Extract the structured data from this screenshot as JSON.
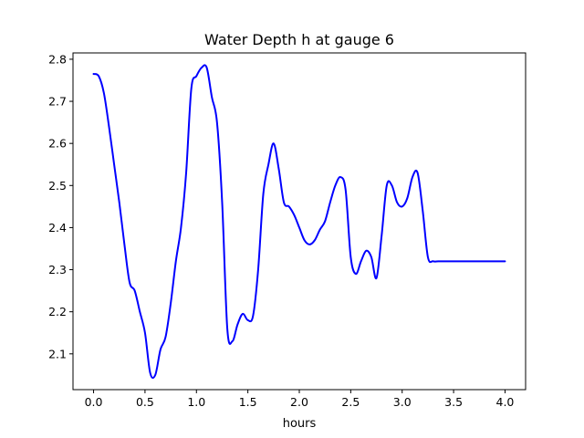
{
  "chart_data": {
    "type": "line",
    "title": "Water Depth h at gauge 6",
    "xlabel": "hours",
    "ylabel": "",
    "xlim": [
      -0.2,
      4.2
    ],
    "ylim": [
      2.015,
      2.815
    ],
    "xticks": [
      0.0,
      0.5,
      1.0,
      1.5,
      2.0,
      2.5,
      3.0,
      3.5,
      4.0
    ],
    "xtick_labels": [
      "0.0",
      "0.5",
      "1.0",
      "1.5",
      "2.0",
      "2.5",
      "3.0",
      "3.5",
      "4.0"
    ],
    "yticks": [
      2.1,
      2.2,
      2.3,
      2.4,
      2.5,
      2.6,
      2.7,
      2.8
    ],
    "ytick_labels": [
      "2.1",
      "2.2",
      "2.3",
      "2.4",
      "2.5",
      "2.6",
      "2.7",
      "2.8"
    ],
    "grid": false,
    "color": "#0000ff",
    "series": [
      {
        "x": [
          0.0,
          0.05,
          0.1,
          0.15,
          0.2,
          0.25,
          0.3,
          0.35,
          0.4,
          0.45,
          0.5,
          0.55,
          0.6,
          0.65,
          0.7,
          0.75,
          0.8,
          0.85,
          0.9,
          0.95,
          1.0,
          1.05,
          1.1,
          1.15,
          1.2,
          1.25,
          1.3,
          1.35,
          1.4,
          1.45,
          1.5,
          1.55,
          1.6,
          1.65,
          1.7,
          1.75,
          1.8,
          1.85,
          1.9,
          1.95,
          2.0,
          2.05,
          2.1,
          2.15,
          2.2,
          2.25,
          2.3,
          2.35,
          2.4,
          2.45,
          2.5,
          2.55,
          2.6,
          2.65,
          2.7,
          2.75,
          2.8,
          2.85,
          2.9,
          2.95,
          3.0,
          3.05,
          3.1,
          3.15,
          3.2,
          3.25,
          3.3,
          3.35,
          3.4,
          3.45,
          3.5,
          3.55,
          3.6,
          3.65,
          3.7,
          3.75,
          3.8,
          3.85,
          3.9,
          3.95,
          4.0
        ],
        "y": [
          2.765,
          2.76,
          2.72,
          2.64,
          2.55,
          2.46,
          2.36,
          2.27,
          2.25,
          2.2,
          2.15,
          2.055,
          2.05,
          2.11,
          2.14,
          2.22,
          2.32,
          2.4,
          2.53,
          2.73,
          2.76,
          2.78,
          2.78,
          2.71,
          2.65,
          2.46,
          2.16,
          2.13,
          2.17,
          2.195,
          2.18,
          2.19,
          2.3,
          2.48,
          2.55,
          2.6,
          2.54,
          2.46,
          2.45,
          2.43,
          2.4,
          2.37,
          2.36,
          2.37,
          2.395,
          2.415,
          2.46,
          2.5,
          2.52,
          2.49,
          2.33,
          2.29,
          2.32,
          2.345,
          2.33,
          2.28,
          2.38,
          2.5,
          2.5,
          2.46,
          2.45,
          2.47,
          2.52,
          2.53,
          2.44,
          2.33,
          2.32,
          2.32,
          2.32,
          2.32,
          2.32,
          2.32,
          2.32,
          2.32,
          2.32,
          2.32,
          2.32,
          2.32,
          2.32,
          2.32,
          2.32
        ]
      }
    ]
  }
}
